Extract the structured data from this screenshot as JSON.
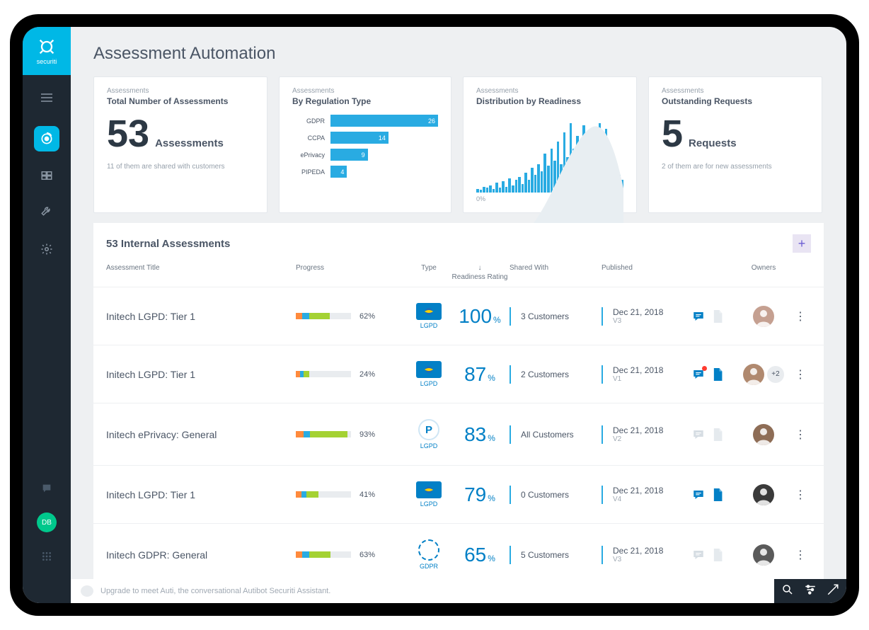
{
  "brand": "securiti",
  "page_title": "Assessment Automation",
  "colors": {
    "accent": "#00b8e6",
    "bar": "#29abe2",
    "link": "#0280c6",
    "sidebar_bg": "#1e2832",
    "page_bg": "#eef0f2",
    "text": "#4a5565",
    "muted": "#96a0ab",
    "add_bg": "#e9e4f3",
    "add_fg": "#6b5dd3"
  },
  "card1": {
    "label": "Assessments",
    "title": "Total Number of Assessments",
    "value": "53",
    "suffix": "Assessments",
    "sub": "11 of them are shared with customers"
  },
  "card2": {
    "label": "Assessments",
    "title": "By Regulation Type",
    "max": 26,
    "rows": [
      {
        "label": "GDPR",
        "val": 26
      },
      {
        "label": "CCPA",
        "val": 14
      },
      {
        "label": "ePrivacy",
        "val": 9
      },
      {
        "label": "PIPEDA",
        "val": 4
      }
    ]
  },
  "card3": {
    "label": "Assessments",
    "title": "Distribution by Readiness",
    "axis": {
      "min": "0%",
      "max": "100%"
    },
    "bars": [
      5,
      4,
      8,
      7,
      10,
      5,
      14,
      7,
      16,
      8,
      20,
      10,
      18,
      22,
      12,
      28,
      18,
      35,
      25,
      40,
      30,
      55,
      38,
      62,
      45,
      72,
      40,
      85,
      50,
      98,
      62,
      80,
      48,
      95,
      60,
      88,
      55,
      70,
      98,
      42,
      90,
      52,
      38,
      30,
      25,
      18
    ]
  },
  "card4": {
    "label": "Assessments",
    "title": "Outstanding Requests",
    "value": "5",
    "suffix": "Requests",
    "sub": "2 of them are for new assessments"
  },
  "table": {
    "title": "53 Internal Assessments",
    "columns": {
      "title": "Assessment Title",
      "progress": "Progress",
      "type": "Type",
      "rating": "Readiness Rating",
      "shared": "Shared With",
      "published": "Published",
      "owners": "Owners"
    },
    "progress_colors": [
      "#ff8a3c",
      "#29abe2",
      "#a4d233"
    ],
    "rows": [
      {
        "title": "Initech LGPD: Tier 1",
        "progress": [
          12,
          12,
          38
        ],
        "pct": "62%",
        "type_badge": "flag",
        "type_label": "LGPD",
        "rating": "100",
        "shared": "3 Customers",
        "date": "Dec 21, 2018",
        "ver": "V3",
        "comment_active": true,
        "comment_dot": false,
        "file_active": false,
        "avatar": "#c5a091",
        "more": ""
      },
      {
        "title": "Initech LGPD: Tier 1",
        "progress": [
          8,
          6,
          10
        ],
        "pct": "24%",
        "type_badge": "flag",
        "type_label": "LGPD",
        "rating": "87",
        "shared": "2 Customers",
        "date": "Dec 21, 2018",
        "ver": "V1",
        "comment_active": true,
        "comment_dot": true,
        "file_active": true,
        "avatar": "#b0896f",
        "more": "+2"
      },
      {
        "title": "Initech ePrivacy: General",
        "progress": [
          14,
          12,
          67
        ],
        "pct": "93%",
        "type_badge": "p",
        "type_label": "LGPD",
        "rating": "83",
        "shared": "All Customers",
        "date": "Dec 21, 2018",
        "ver": "V2",
        "comment_active": false,
        "comment_dot": false,
        "file_active": false,
        "avatar": "#8e6d56",
        "more": ""
      },
      {
        "title": "Initech LGPD: Tier 1",
        "progress": [
          10,
          9,
          22
        ],
        "pct": "41%",
        "type_badge": "flag",
        "type_label": "LGPD",
        "rating": "79",
        "shared": "0 Customers",
        "date": "Dec 21, 2018",
        "ver": "V4",
        "comment_active": true,
        "comment_dot": false,
        "file_active": true,
        "avatar": "#3a3a3a",
        "more": ""
      },
      {
        "title": "Initech GDPR: General",
        "progress": [
          12,
          12,
          39
        ],
        "pct": "63%",
        "type_badge": "eu",
        "type_label": "GDPR",
        "rating": "65",
        "shared": "5 Customers",
        "date": "Dec 21, 2018",
        "ver": "V3",
        "comment_active": false,
        "comment_dot": false,
        "file_active": false,
        "avatar": "#5a5a5a",
        "more": ""
      }
    ]
  },
  "chat_hint": "Upgrade to meet Auti, the conversational Autibot Securiti Assistant.",
  "user_initials": "DB"
}
